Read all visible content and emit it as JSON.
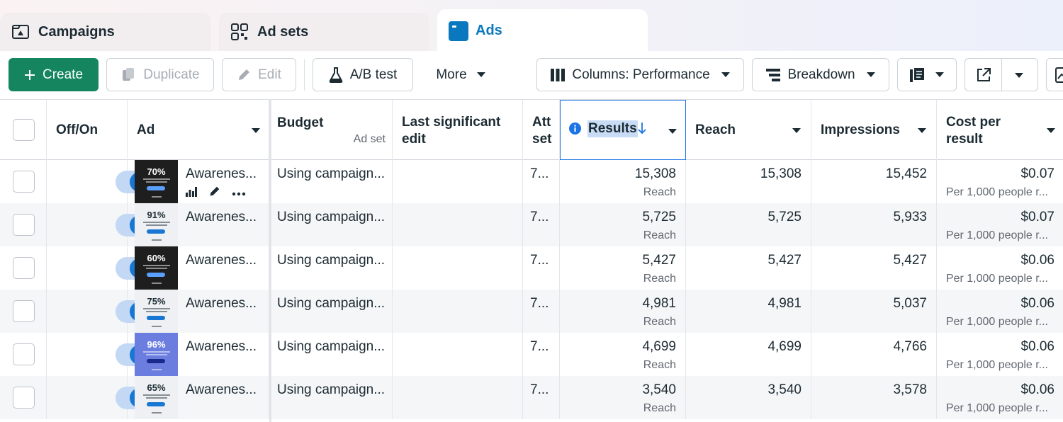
{
  "tabs": [
    {
      "label": "Campaigns",
      "icon": "campaign-flag-icon"
    },
    {
      "label": "Ad sets",
      "icon": "grid-icon"
    },
    {
      "label": "Ads",
      "icon": "ad-window-icon",
      "active": true
    }
  ],
  "toolbar": {
    "create": "Create",
    "duplicate": "Duplicate",
    "edit": "Edit",
    "ab_test": "A/B test",
    "more": "More",
    "columns": "Columns: Performance",
    "breakdown": "Breakdown"
  },
  "table": {
    "headers": {
      "off_on": "Off/On",
      "ad": "Ad",
      "budget": "Budget",
      "budget_sub": "Ad set",
      "last_edit_1": "Last significant",
      "last_edit_2": "edit",
      "attr_1": "Att",
      "attr_2": "set",
      "results": "Results",
      "reach": "Reach",
      "impressions": "Impressions",
      "cost_1": "Cost per",
      "cost_2": "result"
    },
    "rows": [
      {
        "pct": "70%",
        "thumb": "dark",
        "ad": "Awarenes...",
        "budget": "Using campaign...",
        "attr": "7...",
        "results": "15,308",
        "results_sub": "Reach",
        "reach": "15,308",
        "impressions": "15,452",
        "cost": "$0.07",
        "cost_sub": "Per 1,000 people r..."
      },
      {
        "pct": "91%",
        "thumb": "light",
        "ad": "Awarenes...",
        "budget": "Using campaign...",
        "attr": "7...",
        "results": "5,725",
        "results_sub": "Reach",
        "reach": "5,725",
        "impressions": "5,933",
        "cost": "$0.07",
        "cost_sub": "Per 1,000 people r..."
      },
      {
        "pct": "60%",
        "thumb": "dark",
        "ad": "Awarenes...",
        "budget": "Using campaign...",
        "attr": "7...",
        "results": "5,427",
        "results_sub": "Reach",
        "reach": "5,427",
        "impressions": "5,427",
        "cost": "$0.06",
        "cost_sub": "Per 1,000 people r..."
      },
      {
        "pct": "75%",
        "thumb": "light",
        "ad": "Awarenes...",
        "budget": "Using campaign...",
        "attr": "7...",
        "results": "4,981",
        "results_sub": "Reach",
        "reach": "4,981",
        "impressions": "5,037",
        "cost": "$0.06",
        "cost_sub": "Per 1,000 people r..."
      },
      {
        "pct": "96%",
        "thumb": "blue",
        "ad": "Awarenes...",
        "budget": "Using campaign...",
        "attr": "7...",
        "results": "4,699",
        "results_sub": "Reach",
        "reach": "4,699",
        "impressions": "4,766",
        "cost": "$0.06",
        "cost_sub": "Per 1,000 people r..."
      },
      {
        "pct": "65%",
        "thumb": "light",
        "ad": "Awarenes...",
        "budget": "Using campaign...",
        "attr": "7...",
        "results": "3,540",
        "results_sub": "Reach",
        "reach": "3,540",
        "impressions": "3,578",
        "cost": "$0.06",
        "cost_sub": "Per 1,000 people r..."
      }
    ]
  },
  "colors": {
    "accent": "#0a78be",
    "primary": "#14855f",
    "toggle": "#1877d2",
    "sort_border": "#1b74e4"
  }
}
